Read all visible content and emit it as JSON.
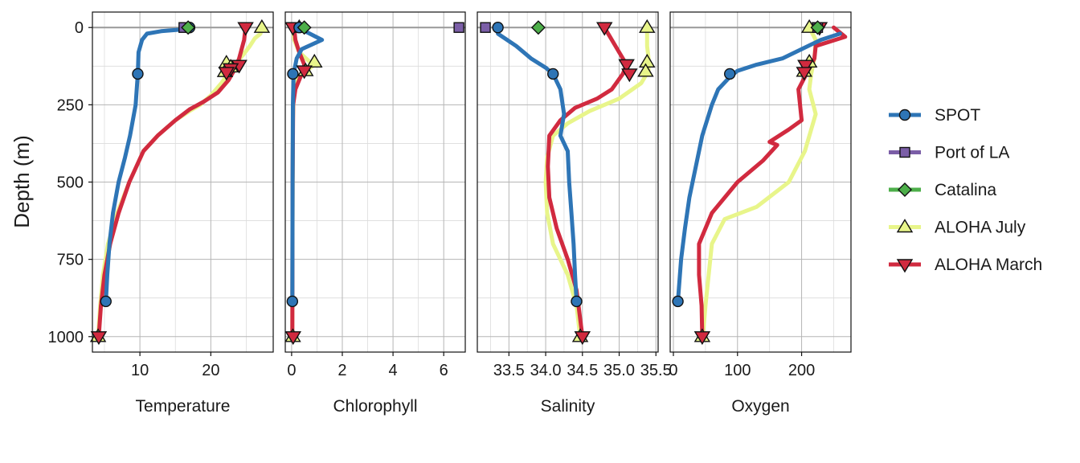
{
  "chart_data": {
    "type": "line",
    "ylabel": "Depth (m)",
    "ylim": [
      1050,
      -50
    ],
    "yticks": [
      "0",
      "250",
      "500",
      "750",
      "1000"
    ],
    "yticks_values": [
      0,
      250,
      500,
      750,
      1000
    ],
    "grid": true,
    "legend_position": "right",
    "series": [
      {
        "name": "SPOT",
        "color": "#2e75b6",
        "marker": "circle"
      },
      {
        "name": "Port of LA",
        "color": "#7b5ea7",
        "marker": "square"
      },
      {
        "name": "Catalina",
        "color": "#4daf4a",
        "marker": "diamond"
      },
      {
        "name": "ALOHA July",
        "color": "#e8f58a",
        "marker": "triangle-up"
      },
      {
        "name": "ALOHA March",
        "color": "#d12a3f",
        "marker": "triangle-down"
      }
    ],
    "panels": [
      {
        "xlabel": "Temperature",
        "xlim": [
          3.3,
          28.8
        ],
        "xticks": [
          "10",
          "20"
        ],
        "xticks_values": [
          10,
          20
        ],
        "profiles": {
          "SPOT": [
            [
              17.0,
              0
            ],
            [
              16.5,
              5
            ],
            [
              13,
              12
            ],
            [
              11,
              20
            ],
            [
              10.3,
              40
            ],
            [
              9.8,
              80
            ],
            [
              9.7,
              150
            ],
            [
              9.4,
              250
            ],
            [
              8.6,
              350
            ],
            [
              7.9,
              420
            ],
            [
              7.0,
              500
            ],
            [
              6.2,
              600
            ],
            [
              5.7,
              700
            ],
            [
              5.4,
              800
            ],
            [
              5.2,
              886
            ]
          ],
          "ALOHA July": [
            [
              27.2,
              0
            ],
            [
              27.0,
              20
            ],
            [
              26.2,
              35
            ],
            [
              25.5,
              60
            ],
            [
              24.5,
              90
            ],
            [
              23.0,
              130
            ],
            [
              21.5,
              180
            ],
            [
              20.0,
              220
            ],
            [
              18.5,
              250
            ],
            [
              17.0,
              270
            ],
            [
              15.0,
              300
            ],
            [
              12.5,
              350
            ],
            [
              10.5,
              400
            ],
            [
              8.5,
              500
            ],
            [
              6.8,
              600
            ],
            [
              5.5,
              700
            ],
            [
              4.8,
              800
            ],
            [
              4.4,
              900
            ],
            [
              4.1,
              1000
            ]
          ],
          "ALOHA March": [
            [
              24.9,
              0
            ],
            [
              24.7,
              40
            ],
            [
              24.0,
              100
            ],
            [
              23.5,
              130
            ],
            [
              22.5,
              170
            ],
            [
              21.0,
              210
            ],
            [
              19.0,
              240
            ],
            [
              17.0,
              265
            ],
            [
              15.0,
              300
            ],
            [
              12.5,
              350
            ],
            [
              10.5,
              400
            ],
            [
              8.5,
              500
            ],
            [
              7.0,
              600
            ],
            [
              5.8,
              700
            ],
            [
              5.0,
              800
            ],
            [
              4.5,
              900
            ],
            [
              4.2,
              1000
            ]
          ]
        },
        "points": {
          "SPOT": [
            [
              17.0,
              0
            ],
            [
              9.7,
              150
            ],
            [
              5.2,
              886
            ]
          ],
          "Port of LA": [
            [
              16.2,
              0
            ]
          ],
          "Catalina": [
            [
              16.8,
              0
            ]
          ],
          "ALOHA July": [
            [
              27.2,
              0
            ],
            [
              22.2,
              115
            ],
            [
              22.8,
              128
            ],
            [
              22.0,
              143
            ],
            [
              4.1,
              1000
            ]
          ],
          "ALOHA March": [
            [
              24.9,
              0
            ],
            [
              24.0,
              122
            ],
            [
              22.8,
              133
            ],
            [
              22.2,
              145
            ],
            [
              4.2,
              1000
            ]
          ]
        }
      },
      {
        "xlabel": "Chlorophyll",
        "xlim": [
          -0.25,
          6.85
        ],
        "xticks": [
          "0",
          "2",
          "4",
          "6"
        ],
        "xticks_values": [
          0,
          2,
          4,
          6
        ],
        "profiles": {
          "SPOT": [
            [
              0.3,
              0
            ],
            [
              0.6,
              15
            ],
            [
              1.2,
              40
            ],
            [
              0.4,
              70
            ],
            [
              0.2,
              100
            ],
            [
              0.08,
              150
            ],
            [
              0.05,
              250
            ],
            [
              0.04,
              500
            ],
            [
              0.03,
              886
            ]
          ],
          "ALOHA July": [
            [
              0.05,
              0
            ],
            [
              0.1,
              40
            ],
            [
              0.3,
              80
            ],
            [
              0.7,
              110
            ],
            [
              0.9,
              120
            ],
            [
              0.6,
              140
            ],
            [
              0.2,
              170
            ],
            [
              0.08,
              220
            ],
            [
              0.05,
              300
            ],
            [
              0.04,
              600
            ],
            [
              0.03,
              1000
            ]
          ],
          "ALOHA March": [
            [
              0.1,
              0
            ],
            [
              0.15,
              40
            ],
            [
              0.3,
              80
            ],
            [
              0.5,
              120
            ],
            [
              0.4,
              150
            ],
            [
              0.15,
              200
            ],
            [
              0.06,
              250
            ],
            [
              0.04,
              500
            ],
            [
              0.03,
              1000
            ]
          ]
        },
        "points": {
          "SPOT": [
            [
              0.3,
              0
            ],
            [
              0.05,
              150
            ],
            [
              0.03,
              886
            ]
          ],
          "Port of LA": [
            [
              6.6,
              0
            ]
          ],
          "Catalina": [
            [
              0.5,
              0
            ]
          ],
          "ALOHA July": [
            [
              0.3,
              0
            ],
            [
              0.9,
              112
            ],
            [
              0.55,
              140
            ],
            [
              0.05,
              1000
            ]
          ],
          "ALOHA March": [
            [
              0.05,
              0
            ],
            [
              0.5,
              140
            ],
            [
              0.06,
              1000
            ]
          ]
        }
      },
      {
        "xlabel": "Salinity",
        "xlim": [
          33.07,
          35.53
        ],
        "xticks": [
          "33.5",
          "34.0",
          "34.5",
          "35.0",
          "35.5"
        ],
        "xticks_values": [
          33.5,
          34.0,
          34.5,
          35.0,
          35.5
        ],
        "profiles": {
          "SPOT": [
            [
              33.35,
              0
            ],
            [
              33.35,
              20
            ],
            [
              33.6,
              60
            ],
            [
              33.8,
              100
            ],
            [
              34.0,
              130
            ],
            [
              34.1,
              150
            ],
            [
              34.2,
              200
            ],
            [
              34.25,
              280
            ],
            [
              34.2,
              350
            ],
            [
              34.3,
              400
            ],
            [
              34.32,
              500
            ],
            [
              34.35,
              600
            ],
            [
              34.38,
              700
            ],
            [
              34.4,
              800
            ],
            [
              34.42,
              886
            ]
          ],
          "ALOHA July": [
            [
              35.38,
              0
            ],
            [
              35.38,
              60
            ],
            [
              35.4,
              100
            ],
            [
              35.4,
              140
            ],
            [
              35.3,
              180
            ],
            [
              35.0,
              230
            ],
            [
              34.6,
              270
            ],
            [
              34.3,
              310
            ],
            [
              34.1,
              350
            ],
            [
              34.02,
              420
            ],
            [
              34.0,
              500
            ],
            [
              34.02,
              600
            ],
            [
              34.1,
              700
            ],
            [
              34.3,
              800
            ],
            [
              34.42,
              900
            ],
            [
              34.47,
              1000
            ]
          ],
          "ALOHA March": [
            [
              34.8,
              0
            ],
            [
              34.9,
              40
            ],
            [
              35.0,
              80
            ],
            [
              35.1,
              120
            ],
            [
              35.05,
              150
            ],
            [
              34.9,
              200
            ],
            [
              34.7,
              230
            ],
            [
              34.4,
              260
            ],
            [
              34.2,
              300
            ],
            [
              34.05,
              350
            ],
            [
              34.03,
              450
            ],
            [
              34.05,
              550
            ],
            [
              34.15,
              650
            ],
            [
              34.3,
              750
            ],
            [
              34.42,
              850
            ],
            [
              34.5,
              1000
            ]
          ]
        },
        "points": {
          "SPOT": [
            [
              33.35,
              0
            ],
            [
              34.1,
              150
            ],
            [
              34.42,
              886
            ]
          ],
          "Port of LA": [
            [
              33.18,
              0
            ]
          ],
          "Catalina": [
            [
              33.9,
              0
            ]
          ],
          "ALOHA July": [
            [
              35.38,
              0
            ],
            [
              35.38,
              112
            ],
            [
              35.36,
              142
            ],
            [
              34.47,
              1000
            ]
          ],
          "ALOHA March": [
            [
              34.8,
              0
            ],
            [
              35.1,
              120
            ],
            [
              35.14,
              150
            ],
            [
              34.5,
              1000
            ]
          ]
        }
      },
      {
        "xlabel": "Oxygen",
        "xlim": [
          -5,
          277
        ],
        "xticks": [
          "0",
          "100",
          "200"
        ],
        "xticks_values": [
          0,
          100,
          200
        ],
        "profiles": {
          "SPOT": [
            [
              260,
              20
            ],
            [
              230,
              40
            ],
            [
              200,
              70
            ],
            [
              170,
              100
            ],
            [
              130,
              120
            ],
            [
              100,
              140
            ],
            [
              88,
              160
            ],
            [
              70,
              200
            ],
            [
              60,
              250
            ],
            [
              45,
              350
            ],
            [
              35,
              450
            ],
            [
              25,
              550
            ],
            [
              18,
              650
            ],
            [
              12,
              750
            ],
            [
              7,
              886
            ]
          ],
          "ALOHA July": [
            [
              212,
              0
            ],
            [
              222,
              40
            ],
            [
              220,
              100
            ],
            [
              215,
              150
            ],
            [
              212,
              200
            ],
            [
              222,
              280
            ],
            [
              215,
              330
            ],
            [
              205,
              400
            ],
            [
              180,
              500
            ],
            [
              130,
              580
            ],
            [
              80,
              620
            ],
            [
              60,
              700
            ],
            [
              55,
              800
            ],
            [
              50,
              900
            ],
            [
              46,
              1000
            ]
          ],
          "ALOHA March": [
            [
              250,
              0
            ],
            [
              268,
              30
            ],
            [
              222,
              60
            ],
            [
              220,
              100
            ],
            [
              195,
              200
            ],
            [
              200,
              300
            ],
            [
              180,
              330
            ],
            [
              150,
              370
            ],
            [
              162,
              380
            ],
            [
              140,
              430
            ],
            [
              100,
              500
            ],
            [
              60,
              600
            ],
            [
              40,
              700
            ],
            [
              40,
              800
            ],
            [
              44,
              900
            ],
            [
              45,
              1000
            ]
          ]
        },
        "points": {
          "SPOT": [
            [
              88,
              150
            ],
            [
              7,
              886
            ]
          ],
          "Port of LA": [
            [
              225,
              0
            ]
          ],
          "Catalina": [
            [
              225,
              0
            ]
          ],
          "ALOHA July": [
            [
              212,
              0
            ],
            [
              212,
              112
            ],
            [
              204,
              142
            ],
            [
              45,
              1000
            ]
          ],
          "ALOHA March": [
            [
              228,
              0
            ],
            [
              206,
              122
            ],
            [
              204,
              145
            ],
            [
              45,
              1000
            ]
          ]
        }
      }
    ]
  }
}
